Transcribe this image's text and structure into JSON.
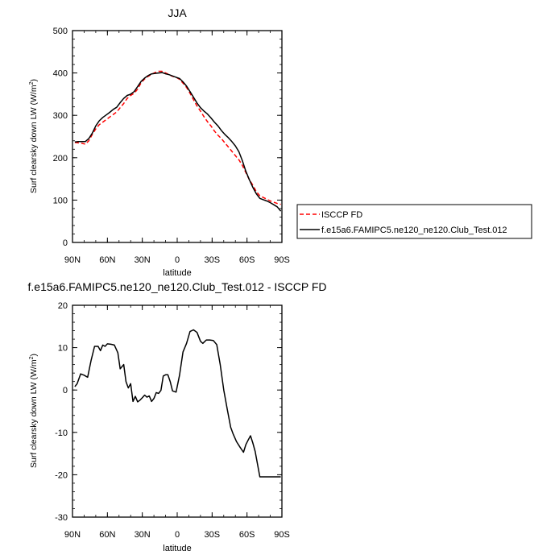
{
  "chart_data": [
    {
      "type": "line",
      "title": "JJA",
      "xlabel": "latitude",
      "ylabel": "Surf clearsky down LW (W/m",
      "ylabel_sup": "2",
      "ylabel_close": ")",
      "xlim": [
        90,
        -90
      ],
      "ylim": [
        0,
        500
      ],
      "x_ticks": [
        90,
        60,
        30,
        0,
        -30,
        -60,
        -90
      ],
      "x_tick_labels": [
        "90N",
        "60N",
        "30N",
        "0",
        "30S",
        "60S",
        "90S"
      ],
      "y_ticks": [
        0,
        100,
        200,
        300,
        400,
        500
      ],
      "y_tick_labels": [
        "0",
        "100",
        "200",
        "300",
        "400",
        "500"
      ],
      "grid": false,
      "legend_position": "right",
      "series": [
        {
          "name": "ISCCP FD",
          "color": "#ff0000",
          "dash": "dashed",
          "x": [
            88,
            85,
            82,
            79,
            76,
            73,
            70,
            67,
            64,
            61,
            58,
            55,
            52,
            49,
            46,
            43,
            40,
            37,
            34,
            31,
            28,
            25,
            22,
            19,
            16,
            13,
            10,
            7,
            4,
            1,
            -2,
            -5,
            -8,
            -11,
            -14,
            -17,
            -20,
            -23,
            -26,
            -29,
            -32,
            -35,
            -38,
            -41,
            -44,
            -47,
            -50,
            -53,
            -56,
            -59,
            -62,
            -65,
            -68,
            -71,
            -74,
            -77,
            -80,
            -83,
            -86,
            -89
          ],
          "y": [
            236,
            235,
            234,
            232,
            240,
            255,
            268,
            278,
            284,
            290,
            296,
            302,
            308,
            318,
            328,
            340,
            347,
            352,
            362,
            377,
            386,
            392,
            397,
            401,
            404,
            404,
            400,
            396,
            392,
            390,
            385,
            376,
            366,
            352,
            337,
            322,
            310,
            297,
            285,
            275,
            263,
            253,
            245,
            235,
            225,
            215,
            205,
            195,
            182,
            165,
            148,
            135,
            120,
            110,
            106,
            102,
            98,
            95,
            92,
            90
          ]
        },
        {
          "name": "f.e15a6.FAMIPC5.ne120_ne120.Club_Test.012",
          "color": "#000000",
          "dash": "solid",
          "x": [
            88,
            85,
            82,
            79,
            76,
            73,
            70,
            67,
            64,
            61,
            58,
            55,
            52,
            49,
            46,
            43,
            40,
            37,
            34,
            31,
            28,
            25,
            22,
            19,
            16,
            13,
            10,
            7,
            4,
            1,
            -2,
            -5,
            -8,
            -11,
            -14,
            -17,
            -20,
            -23,
            -26,
            -29,
            -32,
            -35,
            -38,
            -41,
            -44,
            -47,
            -50,
            -53,
            -56,
            -59,
            -62,
            -65,
            -68,
            -71,
            -74,
            -77,
            -80,
            -83,
            -86,
            -89
          ],
          "y": [
            237,
            238,
            238,
            238,
            245,
            258,
            275,
            287,
            295,
            301,
            307,
            314,
            319,
            330,
            340,
            347,
            350,
            356,
            368,
            380,
            388,
            394,
            398,
            399,
            400,
            401,
            398,
            396,
            393,
            390,
            387,
            379,
            369,
            356,
            343,
            329,
            318,
            310,
            303,
            294,
            284,
            275,
            264,
            255,
            247,
            238,
            228,
            214,
            193,
            168,
            148,
            130,
            115,
            104,
            101,
            98,
            94,
            89,
            84,
            74
          ]
        }
      ]
    },
    {
      "type": "line",
      "title": "f.e15a6.FAMIPC5.ne120_ne120.Club_Test.012 - ISCCP FD",
      "xlabel": "latitude",
      "ylabel": "Surf clearsky down LW (W/m",
      "ylabel_sup": "2",
      "ylabel_close": ")",
      "xlim": [
        90,
        -90
      ],
      "ylim": [
        -30,
        20
      ],
      "x_ticks": [
        90,
        60,
        30,
        0,
        -30,
        -60,
        -90
      ],
      "x_tick_labels": [
        "90N",
        "60N",
        "30N",
        "0",
        "30S",
        "60S",
        "90S"
      ],
      "y_ticks": [
        -30,
        -20,
        -10,
        0,
        10,
        20
      ],
      "y_tick_labels": [
        "-30",
        "-20",
        "-10",
        "0",
        "10",
        "20"
      ],
      "grid": false,
      "series": [
        {
          "color": "#000000",
          "dash": "solid",
          "x": [
            88,
            86,
            83,
            80,
            77,
            74,
            71,
            68,
            66,
            64,
            62,
            60,
            57,
            54,
            51,
            49,
            46,
            44,
            42,
            40,
            38,
            36,
            34,
            32,
            30,
            28,
            26,
            24,
            22,
            20,
            18,
            16,
            14,
            12,
            10,
            8,
            6,
            4,
            1,
            -2,
            -5,
            -8,
            -11,
            -14,
            -17,
            -20,
            -22,
            -25,
            -28,
            -31,
            -34,
            -37,
            -40,
            -43,
            -46,
            -48,
            -51,
            -54,
            -57,
            -59,
            -61,
            -63,
            -65,
            -67,
            -69,
            -71,
            -74,
            -77,
            -80,
            -83,
            -85,
            -87,
            -89
          ],
          "y": [
            0.8,
            1.5,
            3.8,
            3.5,
            3.0,
            7.0,
            10.3,
            10.3,
            9.3,
            10.6,
            10.3,
            10.9,
            10.8,
            10.6,
            8.8,
            5.0,
            6.0,
            2.0,
            0.5,
            1.5,
            -2.7,
            -1.5,
            -2.8,
            -2.4,
            -1.8,
            -1.2,
            -1.7,
            -1.4,
            -2.7,
            -2.0,
            -0.6,
            -0.8,
            -0.1,
            3.3,
            3.6,
            3.6,
            2.0,
            -0.2,
            -0.5,
            3.5,
            9.0,
            11.0,
            13.8,
            14.2,
            13.6,
            11.5,
            11.0,
            11.8,
            11.8,
            11.7,
            10.7,
            6.0,
            0.0,
            -4.5,
            -8.8,
            -10.3,
            -12.2,
            -13.5,
            -14.7,
            -12.9,
            -11.8,
            -10.8,
            -12.5,
            -14.5,
            -17.5,
            -20.5,
            -20.5,
            -20.5,
            -20.5,
            -20.5,
            -20.5,
            -20.5,
            -20.5
          ]
        }
      ]
    }
  ]
}
